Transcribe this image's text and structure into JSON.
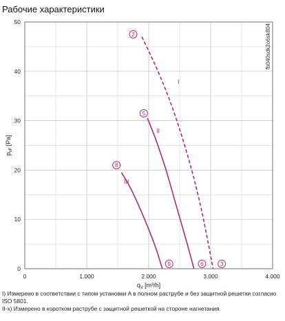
{
  "title": "Рабочие характеристики",
  "notes": [
    "I) Измерено в соответствии с типом установки A в полном раструбе и без защитной решетки согласно ISO 5801.",
    "II-x) Измерено в коротком раструбе с защитной решеткой на стороне нагнетания."
  ],
  "chart_data": {
    "type": "line",
    "xlabel_main": "q",
    "xlabel_sub": "V",
    "xlabel_unit": "[m³/h]",
    "ylabel_main": "p",
    "ylabel_sub": "sF",
    "ylabel_unit": "[Pa]",
    "xlim": [
      0,
      4000
    ],
    "ylim": [
      0,
      50
    ],
    "xticks": [
      0,
      1000,
      2000,
      3000,
      4000
    ],
    "xtick_labels": [
      "0",
      "1.000",
      "2.000",
      "3.000",
      "4.000"
    ],
    "yticks": [
      0,
      10,
      20,
      30,
      40,
      50
    ],
    "ytick_labels": [
      "0",
      "10",
      "20",
      "30",
      "40",
      "50"
    ],
    "grid": true,
    "watermark": "fb040sdk2o6sk804",
    "line_color": "#b0287e",
    "series": [
      {
        "name": "I",
        "style": "dashed",
        "x": [
          1890,
          2150,
          2400,
          2650,
          2850,
          3040
        ],
        "y": [
          47,
          40,
          32,
          22,
          12,
          0
        ]
      },
      {
        "name": "II",
        "style": "solid",
        "x": [
          1980,
          2120,
          2280,
          2440,
          2600,
          2730
        ],
        "y": [
          30.5,
          26,
          20,
          13,
          6,
          0
        ]
      },
      {
        "name": "III",
        "style": "solid",
        "x": [
          1560,
          1700,
          1850,
          2000,
          2120,
          2220
        ],
        "y": [
          19.5,
          16.5,
          12.5,
          8,
          4,
          0
        ]
      }
    ],
    "annotations": [
      {
        "text": "2",
        "x": 1750,
        "y": 47.5,
        "type": "circle"
      },
      {
        "text": "3",
        "x": 3180,
        "y": 1,
        "type": "circle"
      },
      {
        "text": "5",
        "x": 1920,
        "y": 31.5,
        "type": "circle"
      },
      {
        "text": "6",
        "x": 2860,
        "y": 1,
        "type": "circle"
      },
      {
        "text": "8",
        "x": 1480,
        "y": 21,
        "type": "circle"
      },
      {
        "text": "9",
        "x": 2330,
        "y": 1,
        "type": "circle"
      },
      {
        "text": "I",
        "x": 2480,
        "y": 37.5,
        "type": "label"
      },
      {
        "text": "II",
        "x": 2150,
        "y": 27.5,
        "type": "label"
      },
      {
        "text": "III",
        "x": 1640,
        "y": 17.2,
        "type": "label"
      }
    ]
  }
}
